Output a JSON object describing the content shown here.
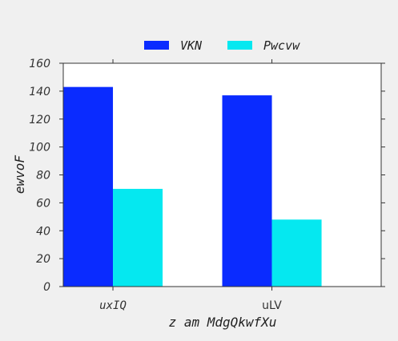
{
  "chart_data": {
    "type": "bar",
    "categories": [
      "uxIQ",
      "uLV"
    ],
    "series": [
      {
        "name": "VKN",
        "values": [
          143,
          137
        ],
        "color": "#0a2bff"
      },
      {
        "name": "Pwcvw",
        "values": [
          70,
          48
        ],
        "color": "#05e8f0"
      }
    ],
    "title": "",
    "xlabel": "z am MdgQkwfXu",
    "ylabel": "ewvoF",
    "ylim": [
      0,
      160
    ],
    "yticks": [
      0,
      20,
      40,
      60,
      80,
      100,
      120,
      140,
      160
    ],
    "grid": false,
    "legend_position": "top-center",
    "background_color": "#f0f0f0",
    "plot_background_color": "#ffffff"
  }
}
